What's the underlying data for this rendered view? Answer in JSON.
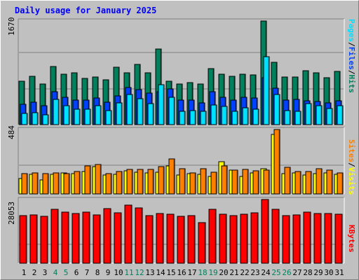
{
  "title": "Daily usage for January 2025",
  "colors": {
    "background": "#c0c0c0",
    "hits": "#00805c",
    "files": "#0040ff",
    "pages": "#00e0ff",
    "visits": "#ffff00",
    "sites": "#ff8000",
    "kbytes": "#ff0000",
    "title": "#0000ff",
    "weekend_day": "#00805c"
  },
  "legend": {
    "top": {
      "pages": "Pages",
      "files": "Files",
      "hits": "Hits",
      "sep": "/"
    },
    "middle": {
      "sites": "Sites",
      "visits": "Visits",
      "sep": "/"
    },
    "bottom": {
      "kbytes": "KBytes"
    }
  },
  "chart_data": [
    {
      "type": "bar",
      "title": "Daily usage for January 2025",
      "panel": "hits-files-pages",
      "max_label": "1670",
      "ylim": [
        0,
        1670
      ],
      "categories": [
        "1",
        "2",
        "3",
        "4",
        "5",
        "6",
        "7",
        "8",
        "9",
        "10",
        "11",
        "12",
        "13",
        "14",
        "15",
        "16",
        "17",
        "18",
        "19",
        "20",
        "21",
        "22",
        "23",
        "24",
        "25",
        "26",
        "27",
        "28",
        "29",
        "30",
        "31"
      ],
      "weekend_days": [
        "4",
        "5",
        "11",
        "12",
        "18",
        "19",
        "25",
        "26"
      ],
      "series": [
        {
          "name": "Hits",
          "values": [
            700,
            775,
            650,
            940,
            810,
            830,
            740,
            770,
            720,
            920,
            840,
            970,
            830,
            1220,
            700,
            660,
            680,
            660,
            900,
            810,
            780,
            810,
            800,
            1670,
            1000,
            770,
            770,
            870,
            830,
            760,
            860
          ]
        },
        {
          "name": "Files",
          "values": [
            330,
            360,
            300,
            530,
            440,
            400,
            400,
            430,
            360,
            460,
            600,
            560,
            510,
            530,
            580,
            390,
            390,
            350,
            530,
            440,
            390,
            440,
            430,
            760,
            590,
            390,
            410,
            380,
            370,
            350,
            380
          ]
        },
        {
          "name": "Pages",
          "values": [
            180,
            190,
            160,
            410,
            300,
            250,
            250,
            300,
            230,
            350,
            480,
            420,
            340,
            640,
            440,
            220,
            230,
            220,
            320,
            290,
            220,
            270,
            250,
            1100,
            480,
            230,
            220,
            340,
            300,
            260,
            300
          ]
        }
      ]
    },
    {
      "type": "bar",
      "panel": "visits-sites",
      "max_label": "484",
      "ylim": [
        0,
        484
      ],
      "categories": [
        "1",
        "2",
        "3",
        "4",
        "5",
        "6",
        "7",
        "8",
        "9",
        "10",
        "11",
        "12",
        "13",
        "14",
        "15",
        "16",
        "17",
        "18",
        "19",
        "20",
        "21",
        "22",
        "23",
        "24",
        "25",
        "26",
        "27",
        "28",
        "29",
        "30",
        "31"
      ],
      "series": [
        {
          "name": "Visits",
          "values": [
            115,
            145,
            104,
            145,
            156,
            151,
            170,
            205,
            140,
            146,
            171,
            165,
            156,
            162,
            208,
            140,
            152,
            146,
            132,
            240,
            181,
            132,
            160,
            190,
            445,
            150,
            156,
            140,
            155,
            160,
            149
          ]
        },
        {
          "name": "Sites",
          "values": [
            151,
            157,
            150,
            157,
            153,
            166,
            210,
            220,
            151,
            168,
            186,
            185,
            183,
            206,
            265,
            187,
            160,
            189,
            163,
            209,
            180,
            185,
            171,
            178,
            484,
            199,
            168,
            170,
            190,
            177,
            160
          ]
        }
      ]
    },
    {
      "type": "bar",
      "panel": "kbytes",
      "max_label": "28053",
      "ylim": [
        0,
        28053
      ],
      "categories": [
        "1",
        "2",
        "3",
        "4",
        "5",
        "6",
        "7",
        "8",
        "9",
        "10",
        "11",
        "12",
        "13",
        "14",
        "15",
        "16",
        "17",
        "18",
        "19",
        "20",
        "21",
        "22",
        "23",
        "24",
        "25",
        "26",
        "27",
        "28",
        "29",
        "30",
        "31"
      ],
      "series": [
        {
          "name": "KBytes",
          "values": [
            21000,
            21200,
            20800,
            23600,
            22500,
            21900,
            22400,
            21400,
            23900,
            22200,
            25500,
            24400,
            21000,
            22000,
            21700,
            20800,
            21000,
            17800,
            23600,
            21500,
            21000,
            21700,
            22300,
            28053,
            23600,
            21000,
            21300,
            22600,
            22000,
            21800,
            21500
          ]
        }
      ]
    }
  ]
}
